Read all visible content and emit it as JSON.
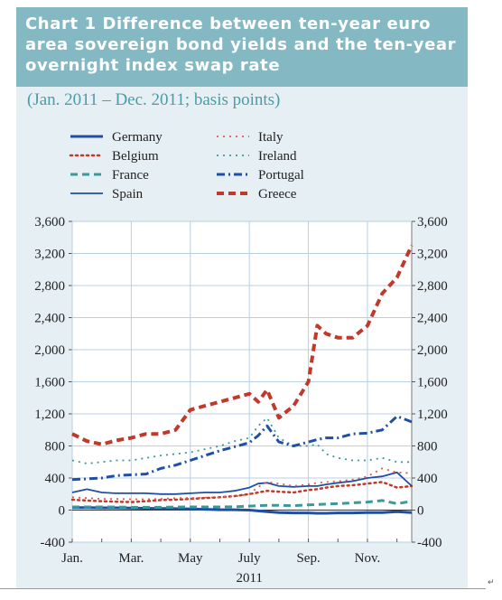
{
  "header": {
    "title": "Chart 1 Difference between ten-year euro\narea sovereign bond yields and the ten-year\novernight index swap rate",
    "subtitle": "(Jan. 2011 – Dec. 2011; basis points)"
  },
  "chart_data": {
    "type": "line",
    "title": "Chart 1 Difference between ten-year euro area sovereign bond yields and the ten-year overnight index swap rate",
    "subtitle": "(Jan. 2011 – Dec. 2011; basis points)",
    "x_tick_labels": [
      "Jan.",
      "Mar.",
      "May",
      "July",
      "Sep.",
      "Nov."
    ],
    "x_tick_positions_month": [
      0,
      2,
      4,
      6,
      8,
      10
    ],
    "xlabel": "2011",
    "xlim_month": [
      0,
      11.5
    ],
    "ylim": [
      -400,
      3600
    ],
    "yticks": [
      -400,
      0,
      400,
      800,
      1200,
      1600,
      2000,
      2400,
      2800,
      3200,
      3600
    ],
    "y_tick_labels": [
      "-400",
      "0",
      "400",
      "800",
      "1,200",
      "1,600",
      "2,000",
      "2,400",
      "2,800",
      "3,200",
      "3,600"
    ],
    "grid": true,
    "legend_position": "top",
    "x": [
      0,
      0.5,
      1,
      1.5,
      2,
      2.5,
      3,
      3.5,
      4,
      4.5,
      5,
      5.5,
      6,
      6.3,
      6.6,
      7,
      7.5,
      8,
      8.3,
      8.6,
      9,
      9.5,
      10,
      10.5,
      11,
      11.5
    ],
    "series": [
      {
        "name": "Germany",
        "color": "#1f4fa5",
        "dash": "solid",
        "width": 3,
        "values": [
          30,
          30,
          28,
          28,
          25,
          22,
          20,
          18,
          15,
          10,
          5,
          5,
          0,
          -10,
          -20,
          -30,
          -35,
          -35,
          -40,
          -40,
          -35,
          -35,
          -30,
          -30,
          -20,
          -30
        ]
      },
      {
        "name": "Belgium",
        "color": "#c0392b",
        "dash": "dot",
        "width": 2.5,
        "values": [
          130,
          120,
          110,
          105,
          100,
          110,
          125,
          130,
          140,
          150,
          160,
          175,
          200,
          220,
          240,
          230,
          220,
          250,
          260,
          280,
          300,
          310,
          330,
          350,
          280,
          300
        ]
      },
      {
        "name": "France",
        "color": "#3a9a9a",
        "dash": "dash",
        "width": 3,
        "values": [
          40,
          40,
          40,
          38,
          35,
          35,
          35,
          38,
          40,
          40,
          40,
          42,
          50,
          55,
          60,
          60,
          55,
          65,
          70,
          75,
          80,
          90,
          100,
          120,
          80,
          110
        ]
      },
      {
        "name": "Spain",
        "color": "#1f4fa5",
        "dash": "solid",
        "width": 1.8,
        "values": [
          220,
          260,
          220,
          210,
          210,
          210,
          200,
          200,
          210,
          220,
          220,
          240,
          280,
          330,
          340,
          300,
          290,
          300,
          300,
          320,
          340,
          360,
          400,
          420,
          470,
          300
        ]
      },
      {
        "name": "Italy",
        "color": "#e05a4a",
        "dash": "sparse",
        "width": 1.8,
        "values": [
          160,
          150,
          140,
          140,
          135,
          135,
          140,
          150,
          150,
          155,
          160,
          170,
          200,
          290,
          350,
          330,
          300,
          320,
          340,
          350,
          360,
          380,
          420,
          520,
          470,
          460
        ]
      },
      {
        "name": "Ireland",
        "color": "#3a9a9a",
        "dash": "sparse",
        "width": 1.8,
        "values": [
          620,
          580,
          600,
          620,
          620,
          650,
          680,
          700,
          720,
          760,
          800,
          860,
          900,
          1050,
          1150,
          900,
          800,
          800,
          820,
          700,
          650,
          620,
          620,
          650,
          600,
          600
        ]
      },
      {
        "name": "Portugal",
        "color": "#1f4fa5",
        "dash": "dashdot",
        "width": 3,
        "values": [
          380,
          390,
          400,
          430,
          440,
          450,
          520,
          560,
          620,
          680,
          740,
          790,
          840,
          930,
          1050,
          850,
          800,
          850,
          880,
          900,
          900,
          950,
          960,
          1000,
          1170,
          1100
        ]
      },
      {
        "name": "Greece",
        "color": "#c0392b",
        "dash": "dash",
        "width": 4,
        "values": [
          950,
          860,
          820,
          870,
          900,
          950,
          950,
          1000,
          1250,
          1300,
          1350,
          1400,
          1450,
          1350,
          1500,
          1150,
          1300,
          1600,
          2300,
          2200,
          2150,
          2150,
          2300,
          2700,
          2900,
          3300
        ]
      }
    ]
  }
}
